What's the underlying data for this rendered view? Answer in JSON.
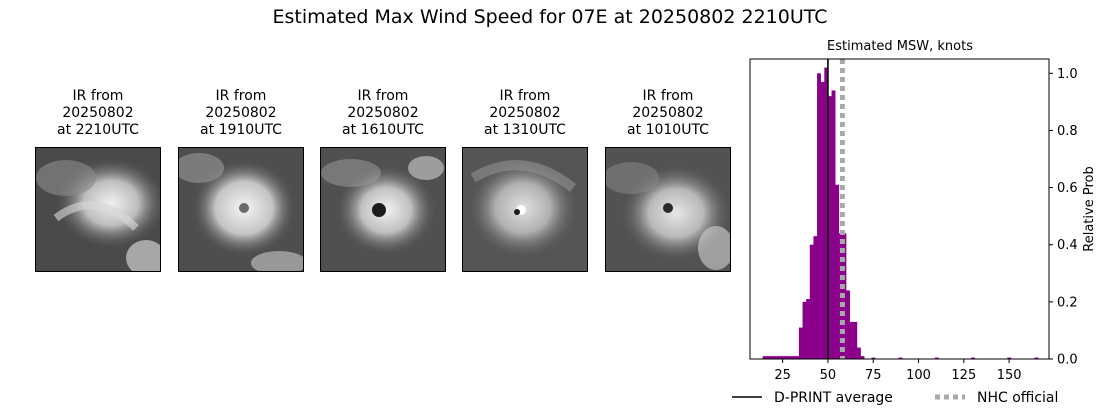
{
  "figure": {
    "title": "Estimated Max Wind Speed for 07E at 20250802 2210UTC"
  },
  "ir_panels": [
    {
      "line1": "IR from",
      "line2": "20250802",
      "line3": "at 2210UTC"
    },
    {
      "line1": "IR from",
      "line2": "20250802",
      "line3": "at 1910UTC"
    },
    {
      "line1": "IR from",
      "line2": "20250802",
      "line3": "at 1610UTC"
    },
    {
      "line1": "IR from",
      "line2": "20250802",
      "line3": "at 1310UTC"
    },
    {
      "line1": "IR from",
      "line2": "20250802",
      "line3": "at 1010UTC"
    }
  ],
  "chart_data": {
    "type": "bar",
    "title": "Estimated MSW, knots",
    "xlabel": "",
    "ylabel": "Relative Prob",
    "xlim": [
      7,
      172
    ],
    "ylim": [
      0,
      1.05
    ],
    "xticks": [
      25,
      50,
      75,
      100,
      125,
      150
    ],
    "yticks": [
      0.0,
      0.2,
      0.4,
      0.6,
      0.8,
      1.0
    ],
    "y_axis_side": "right",
    "grid": false,
    "bar_color": "#8b008b",
    "bin_width": 2,
    "bins": [
      {
        "x": 15,
        "value": 0.01
      },
      {
        "x": 17,
        "value": 0.01
      },
      {
        "x": 19,
        "value": 0.01
      },
      {
        "x": 21,
        "value": 0.01
      },
      {
        "x": 23,
        "value": 0.01
      },
      {
        "x": 25,
        "value": 0.01
      },
      {
        "x": 27,
        "value": 0.01
      },
      {
        "x": 29,
        "value": 0.01
      },
      {
        "x": 31,
        "value": 0.01
      },
      {
        "x": 33,
        "value": 0.01
      },
      {
        "x": 35,
        "value": 0.11
      },
      {
        "x": 37,
        "value": 0.2
      },
      {
        "x": 39,
        "value": 0.21
      },
      {
        "x": 41,
        "value": 0.4
      },
      {
        "x": 43,
        "value": 0.43
      },
      {
        "x": 45,
        "value": 1.0
      },
      {
        "x": 47,
        "value": 0.97
      },
      {
        "x": 49,
        "value": 1.02
      },
      {
        "x": 51,
        "value": 0.92
      },
      {
        "x": 53,
        "value": 0.94
      },
      {
        "x": 55,
        "value": 0.61
      },
      {
        "x": 57,
        "value": 0.44
      },
      {
        "x": 59,
        "value": 0.44
      },
      {
        "x": 61,
        "value": 0.24
      },
      {
        "x": 63,
        "value": 0.13
      },
      {
        "x": 65,
        "value": 0.13
      },
      {
        "x": 67,
        "value": 0.04
      },
      {
        "x": 69,
        "value": 0.01
      },
      {
        "x": 75,
        "value": 0.005
      },
      {
        "x": 90,
        "value": 0.005
      },
      {
        "x": 110,
        "value": 0.005
      },
      {
        "x": 130,
        "value": 0.005
      },
      {
        "x": 150,
        "value": 0.005
      },
      {
        "x": 165,
        "value": 0.005
      }
    ],
    "reference_lines": [
      {
        "name": "D-PRINT average",
        "x": 50,
        "color": "#000000",
        "style": "solid"
      },
      {
        "name": "NHC official",
        "x": 58,
        "color": "#a9a9a9",
        "style": "dotted"
      }
    ],
    "legend": {
      "placement": "bottom-center",
      "entries": [
        "D-PRINT average",
        "NHC official"
      ]
    }
  }
}
